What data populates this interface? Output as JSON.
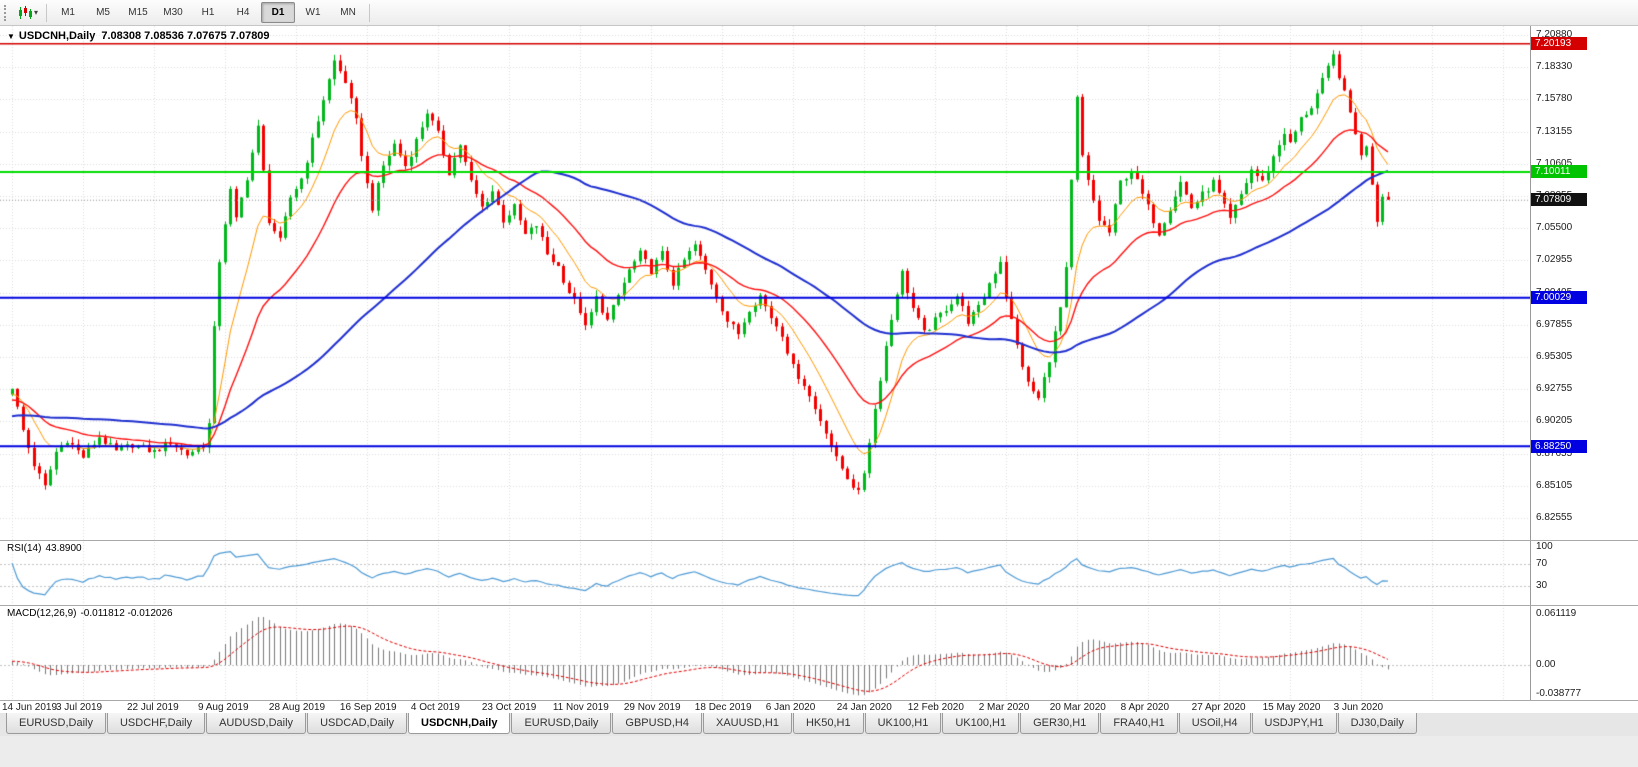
{
  "icons": {
    "collapse": "▼",
    "caret": "▾"
  },
  "toolbar": {
    "timeframes": [
      "M1",
      "M5",
      "M15",
      "M30",
      "H1",
      "H4",
      "D1",
      "W1",
      "MN"
    ],
    "active_timeframe": "D1"
  },
  "chart": {
    "symbol_period": "USDCNH,Daily",
    "ohlc_text": "7.08308 7.08536 7.07675 7.07809",
    "price_scale_labels": [
      "7.20880",
      "7.18330",
      "7.15780",
      "7.13155",
      "7.10605",
      "7.08055",
      "7.05500",
      "7.02955",
      "7.00405",
      "6.97855",
      "6.95305",
      "6.92755",
      "6.90205",
      "6.87655",
      "6.85105",
      "6.82555"
    ],
    "price_tags": [
      {
        "label": "7.20193",
        "value": 7.20193,
        "color": "#d40000"
      },
      {
        "label": "7.10011",
        "value": 7.10011,
        "color": "#00c400"
      },
      {
        "label": "7.07809",
        "value": 7.07809,
        "color": "#111111"
      },
      {
        "label": "7.00029",
        "value": 7.00029,
        "color": "#0000e0"
      },
      {
        "label": "6.88250",
        "value": 6.8825,
        "color": "#0000e0"
      }
    ],
    "dates": [
      "14 Jun 2019",
      "3 Jul 2019",
      "22 Jul 2019",
      "9 Aug 2019",
      "28 Aug 2019",
      "16 Sep 2019",
      "4 Oct 2019",
      "23 Oct 2019",
      "11 Nov 2019",
      "29 Nov 2019",
      "18 Dec 2019",
      "6 Jan 2020",
      "24 Jan 2020",
      "12 Feb 2020",
      "2 Mar 2020",
      "20 Mar 2020",
      "8 Apr 2020",
      "27 Apr 2020",
      "15 May 2020",
      "3 Jun 2020"
    ]
  },
  "rsi": {
    "name": "RSI(14)",
    "value": "43.8900",
    "scale": [
      "100",
      "70",
      "30"
    ],
    "levels": [
      70,
      30
    ],
    "color": "#4f9bd5"
  },
  "macd": {
    "name": "MACD(12,26,9)",
    "values": "-0.011812 -0.012026",
    "scale": [
      "0.061119",
      "0.00",
      "-0.038777"
    ],
    "histogram_color": "#7a7a7a",
    "signal_color": "#e00000"
  },
  "tabs": {
    "active_index": 4,
    "items": [
      "EURUSD,Daily",
      "USDCHF,Daily",
      "AUDUSD,Daily",
      "USDCAD,Daily",
      "USDCNH,Daily",
      "EURUSD,Daily",
      "GBPUSD,H4",
      "XAUUSD,H1",
      "HK50,H1",
      "UK100,H1",
      "UK100,H1",
      "GER30,H1",
      "FRA40,H1",
      "USOil,H4",
      "USDJPY,H1",
      "DJ30,Daily"
    ],
    "active_label": "USDCNH,Daily"
  },
  "chart_data": {
    "type": "candlestick",
    "symbol": "USDCNH",
    "timeframe": "Daily",
    "title": "USDCNH,Daily",
    "last_candle": {
      "open": 7.08308,
      "high": 7.08536,
      "low": 7.07675,
      "close": 7.07809
    },
    "y_axis": {
      "top": 7.2088,
      "bottom": 6.82555,
      "tick_step": 0.0255
    },
    "x_axis_labels": [
      "14 Jun 2019",
      "3 Jul 2019",
      "22 Jul 2019",
      "9 Aug 2019",
      "28 Aug 2019",
      "16 Sep 2019",
      "4 Oct 2019",
      "23 Oct 2019",
      "11 Nov 2019",
      "29 Nov 2019",
      "18 Dec 2019",
      "6 Jan 2020",
      "24 Jan 2020",
      "12 Feb 2020",
      "2 Mar 2020",
      "20 Mar 2020",
      "8 Apr 2020",
      "27 Apr 2020",
      "15 May 2020",
      "3 Jun 2020"
    ],
    "bars_per_label": 13,
    "up_color": "#00b81c",
    "down_color": "#f20000",
    "horizontal_lines": [
      {
        "price": 7.20193,
        "color": "#d40000",
        "width": 1.5
      },
      {
        "price": 7.10011,
        "color": "#00dd00",
        "width": 2
      },
      {
        "price": 7.00029,
        "color": "#0000e0",
        "width": 2
      },
      {
        "price": 6.8825,
        "color": "#0000e0",
        "width": 2
      }
    ],
    "bid_line": {
      "price": 7.07809,
      "color": "#909090"
    },
    "moving_averages": [
      {
        "type": "EMA",
        "period": 10,
        "color": "#ff9900",
        "width": 1
      },
      {
        "type": "EMA",
        "period": 25,
        "color": "#ff1010",
        "width": 1.4
      },
      {
        "type": "SMA",
        "period": 60,
        "color": "#1f2fd0",
        "width": 2
      }
    ],
    "indicators": [
      {
        "name": "RSI",
        "period": 14,
        "current": 43.89,
        "levels": [
          70,
          30
        ]
      },
      {
        "name": "MACD",
        "fast": 12,
        "slow": 26,
        "signal": 9,
        "current_macd": -0.011812,
        "current_signal": -0.012026
      }
    ],
    "pre_visible_anchors": [
      [
        -60,
        6.88
      ],
      [
        -40,
        6.9
      ],
      [
        -20,
        6.915
      ],
      [
        -1,
        6.925
      ]
    ],
    "close_path_anchors": [
      [
        0,
        6.93
      ],
      [
        2,
        6.895
      ],
      [
        4,
        6.868
      ],
      [
        6,
        6.85
      ],
      [
        8,
        6.878
      ],
      [
        10,
        6.888
      ],
      [
        13,
        6.874
      ],
      [
        16,
        6.89
      ],
      [
        19,
        6.878
      ],
      [
        22,
        6.884
      ],
      [
        26,
        6.878
      ],
      [
        29,
        6.886
      ],
      [
        32,
        6.876
      ],
      [
        35,
        6.884
      ],
      [
        36,
        6.9
      ],
      [
        37,
        6.975
      ],
      [
        38,
        7.03
      ],
      [
        39,
        7.06
      ],
      [
        40,
        7.085
      ],
      [
        41,
        7.062
      ],
      [
        43,
        7.096
      ],
      [
        45,
        7.135
      ],
      [
        46,
        7.1
      ],
      [
        47,
        7.062
      ],
      [
        49,
        7.045
      ],
      [
        51,
        7.08
      ],
      [
        53,
        7.095
      ],
      [
        55,
        7.125
      ],
      [
        57,
        7.158
      ],
      [
        59,
        7.188
      ],
      [
        61,
        7.172
      ],
      [
        63,
        7.14
      ],
      [
        65,
        7.09
      ],
      [
        66,
        7.072
      ],
      [
        68,
        7.105
      ],
      [
        70,
        7.122
      ],
      [
        72,
        7.105
      ],
      [
        74,
        7.125
      ],
      [
        76,
        7.148
      ],
      [
        78,
        7.13
      ],
      [
        80,
        7.1
      ],
      [
        82,
        7.122
      ],
      [
        84,
        7.092
      ],
      [
        86,
        7.072
      ],
      [
        88,
        7.085
      ],
      [
        90,
        7.062
      ],
      [
        92,
        7.072
      ],
      [
        94,
        7.05
      ],
      [
        96,
        7.058
      ],
      [
        98,
        7.035
      ],
      [
        100,
        7.025
      ],
      [
        102,
        7.005
      ],
      [
        104,
        6.99
      ],
      [
        105,
        6.976
      ],
      [
        107,
        7.0
      ],
      [
        109,
        6.982
      ],
      [
        111,
        7.002
      ],
      [
        113,
        7.022
      ],
      [
        115,
        7.035
      ],
      [
        117,
        7.022
      ],
      [
        119,
        7.035
      ],
      [
        121,
        7.012
      ],
      [
        123,
        7.03
      ],
      [
        125,
        7.042
      ],
      [
        127,
        7.022
      ],
      [
        129,
        7.002
      ],
      [
        131,
        6.982
      ],
      [
        133,
        6.972
      ],
      [
        135,
        6.992
      ],
      [
        137,
        7.002
      ],
      [
        139,
        6.985
      ],
      [
        141,
        6.972
      ],
      [
        143,
        6.945
      ],
      [
        145,
        6.932
      ],
      [
        147,
        6.912
      ],
      [
        149,
        6.895
      ],
      [
        151,
        6.872
      ],
      [
        153,
        6.858
      ],
      [
        155,
        6.845
      ],
      [
        156,
        6.862
      ],
      [
        158,
        6.912
      ],
      [
        160,
        6.962
      ],
      [
        162,
        7.005
      ],
      [
        163,
        7.02
      ],
      [
        165,
        6.992
      ],
      [
        167,
        6.972
      ],
      [
        169,
        6.982
      ],
      [
        171,
        6.992
      ],
      [
        173,
        7.002
      ],
      [
        175,
        6.982
      ],
      [
        177,
        6.992
      ],
      [
        179,
        7.012
      ],
      [
        181,
        7.03
      ],
      [
        182,
        7.002
      ],
      [
        184,
        6.962
      ],
      [
        186,
        6.932
      ],
      [
        188,
        6.92
      ],
      [
        190,
        6.952
      ],
      [
        192,
        6.992
      ],
      [
        193,
        7.022
      ],
      [
        194,
        7.092
      ],
      [
        195,
        7.158
      ],
      [
        196,
        7.112
      ],
      [
        197,
        7.092
      ],
      [
        199,
        7.062
      ],
      [
        201,
        7.052
      ],
      [
        203,
        7.092
      ],
      [
        205,
        7.102
      ],
      [
        207,
        7.082
      ],
      [
        208,
        7.072
      ],
      [
        210,
        7.052
      ],
      [
        212,
        7.072
      ],
      [
        214,
        7.092
      ],
      [
        216,
        7.072
      ],
      [
        218,
        7.082
      ],
      [
        220,
        7.092
      ],
      [
        221,
        7.082
      ],
      [
        223,
        7.062
      ],
      [
        225,
        7.082
      ],
      [
        227,
        7.102
      ],
      [
        229,
        7.092
      ],
      [
        231,
        7.112
      ],
      [
        233,
        7.132
      ],
      [
        234,
        7.122
      ],
      [
        236,
        7.142
      ],
      [
        238,
        7.152
      ],
      [
        240,
        7.172
      ],
      [
        242,
        7.192
      ],
      [
        244,
        7.162
      ],
      [
        246,
        7.132
      ],
      [
        247,
        7.112
      ],
      [
        248,
        7.122
      ],
      [
        249,
        7.092
      ],
      [
        250,
        7.062
      ],
      [
        251,
        7.083
      ],
      [
        252,
        7.07809
      ]
    ]
  }
}
